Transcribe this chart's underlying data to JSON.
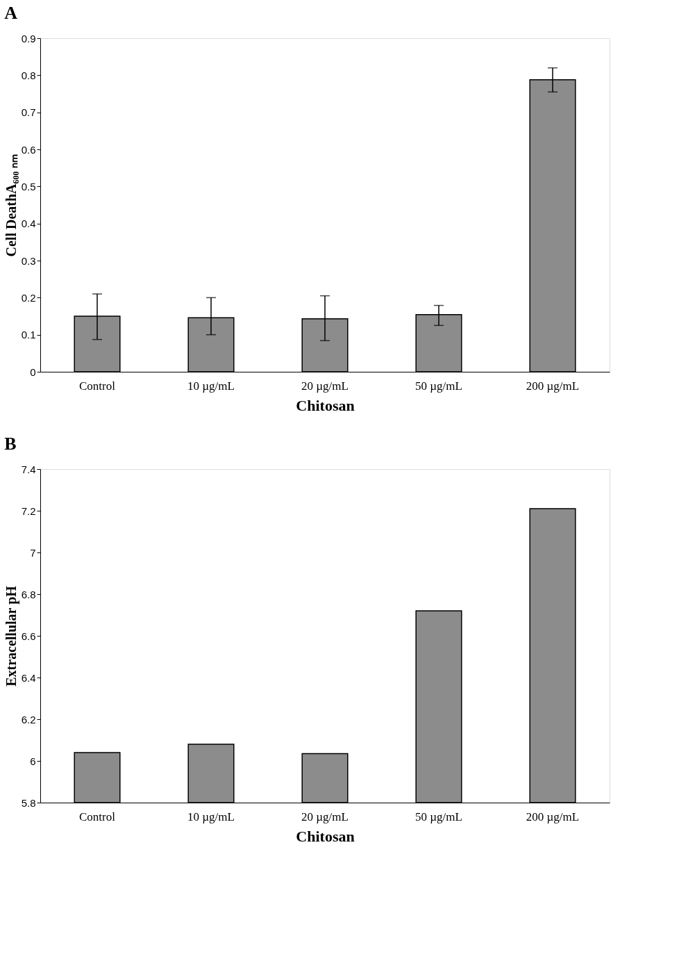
{
  "chart_data": [
    {
      "type": "bar",
      "title": "A",
      "xlabel": "Chitosan",
      "ylabel": "Cell DeathA₆₀₀ ₙₘ",
      "categories": [
        "Control",
        "10 µg/mL",
        "20 µg/mL",
        "50 µg/mL",
        "200 µg/mL"
      ],
      "values": [
        0.15,
        0.146,
        0.143,
        0.154,
        0.788
      ],
      "errors": [
        [
          0.087,
          0.21
        ],
        [
          0.1,
          0.2
        ],
        [
          0.084,
          0.205
        ],
        [
          0.125,
          0.179
        ],
        [
          0.755,
          0.82
        ]
      ],
      "color": "#8c8c8c",
      "ylim": [
        0,
        0.9
      ],
      "yticks": [
        0,
        0.1,
        0.2,
        0.3,
        0.4,
        0.5,
        0.6,
        0.7,
        0.8,
        0.9
      ],
      "grid": false
    },
    {
      "type": "bar",
      "title": "B",
      "xlabel": "Chitosan",
      "ylabel": "Extracellular pH",
      "categories": [
        "Control",
        "10 µg/mL",
        "20 µg/mL",
        "50 µg/mL",
        "200 µg/mL"
      ],
      "values": [
        6.04,
        6.08,
        6.035,
        6.72,
        7.21
      ],
      "color": "#8c8c8c",
      "ylim": [
        5.8,
        7.4
      ],
      "yticks": [
        5.8,
        6,
        6.2,
        6.4,
        6.6,
        6.8,
        7,
        7.2,
        7.4
      ],
      "grid": false
    }
  ]
}
